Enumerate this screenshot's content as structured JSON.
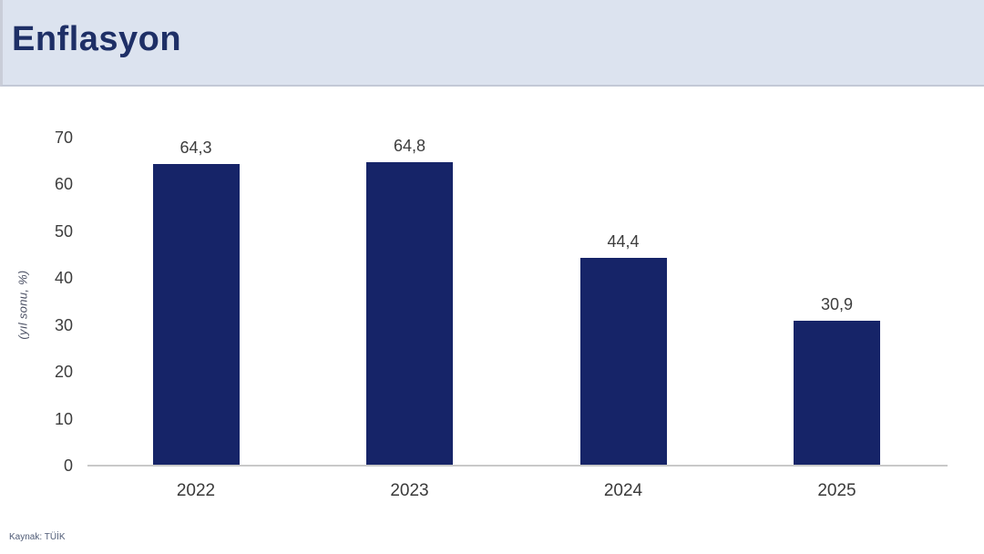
{
  "page": {
    "title": "Enflasyon",
    "source": "Kaynak: TÜİK"
  },
  "colors": {
    "header_bg": "#dce3ef",
    "title_text": "#1e2f66",
    "bar": "#162468",
    "axis_line": "#c9c9c9",
    "tick_text": "#3d3d3d"
  },
  "chart_data": {
    "type": "bar",
    "title": "Enflasyon",
    "categories": [
      "2022",
      "2023",
      "2024",
      "2025"
    ],
    "values": [
      64.3,
      64.8,
      44.4,
      30.9
    ],
    "value_labels": [
      "64,3",
      "64,8",
      "44,4",
      "30,9"
    ],
    "xlabel": "",
    "ylabel": "(yıl sonu, %)",
    "ylim": [
      0,
      70
    ],
    "yticks": [
      0,
      10,
      20,
      30,
      40,
      50,
      60,
      70
    ],
    "grid": false,
    "legend_position": "none",
    "bar_color": "#162468",
    "source": "Kaynak: TÜİK"
  }
}
